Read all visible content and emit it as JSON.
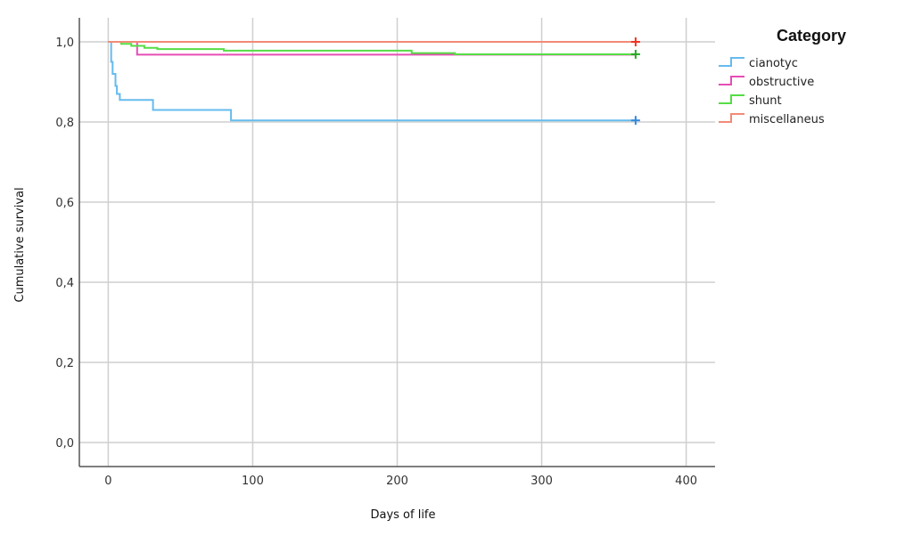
{
  "chart_data": {
    "type": "line",
    "subtype": "kaplan-meier step",
    "title": "",
    "xlabel": "Days of life",
    "ylabel": "Cumulative survival",
    "xlim": [
      -20,
      420
    ],
    "ylim": [
      -0.06,
      1.06
    ],
    "x_ticks": [
      0,
      100,
      200,
      300,
      400
    ],
    "x_tick_labels": [
      "0",
      "100",
      "200",
      "300",
      "400"
    ],
    "y_ticks": [
      0.0,
      0.2,
      0.4,
      0.6,
      0.8,
      1.0
    ],
    "y_tick_labels": [
      "0,0",
      "0,2",
      "0,4",
      "0,6",
      "0,8",
      "1,0"
    ],
    "grid": true,
    "legend": {
      "title": "Category",
      "position": "top-right"
    },
    "series": [
      {
        "name": "cianotyc",
        "color": "#66bbee",
        "censor_color": "#3388dd",
        "points": [
          [
            0,
            1.0
          ],
          [
            2,
            1.0
          ],
          [
            2,
            0.95
          ],
          [
            3,
            0.95
          ],
          [
            3,
            0.92
          ],
          [
            5,
            0.92
          ],
          [
            5,
            0.89
          ],
          [
            6,
            0.89
          ],
          [
            6,
            0.87
          ],
          [
            8,
            0.87
          ],
          [
            8,
            0.855
          ],
          [
            31,
            0.855
          ],
          [
            31,
            0.83
          ],
          [
            85,
            0.83
          ],
          [
            85,
            0.804
          ],
          [
            365,
            0.804
          ]
        ],
        "censored": [
          [
            365,
            0.804
          ]
        ]
      },
      {
        "name": "obstructive",
        "color": "#e64db5",
        "censor_color": "#e64db5",
        "points": [
          [
            0,
            1.0
          ],
          [
            20,
            1.0
          ],
          [
            20,
            0.968
          ],
          [
            365,
            0.968
          ]
        ],
        "censored": []
      },
      {
        "name": "shunt",
        "color": "#55dd44",
        "censor_color": "#22aa22",
        "points": [
          [
            0,
            1.0
          ],
          [
            9,
            1.0
          ],
          [
            9,
            0.995
          ],
          [
            16,
            0.995
          ],
          [
            16,
            0.99
          ],
          [
            25,
            0.99
          ],
          [
            25,
            0.985
          ],
          [
            34,
            0.985
          ],
          [
            34,
            0.982
          ],
          [
            80,
            0.982
          ],
          [
            80,
            0.978
          ],
          [
            210,
            0.978
          ],
          [
            210,
            0.972
          ],
          [
            240,
            0.972
          ],
          [
            240,
            0.969
          ],
          [
            365,
            0.969
          ]
        ],
        "censored": [
          [
            365,
            0.969
          ]
        ]
      },
      {
        "name": "miscellaneus",
        "color": "#f28a77",
        "censor_color": "#ee3322",
        "points": [
          [
            0,
            1.0
          ],
          [
            365,
            1.0
          ]
        ],
        "censored": [
          [
            365,
            1.0
          ]
        ]
      }
    ]
  }
}
